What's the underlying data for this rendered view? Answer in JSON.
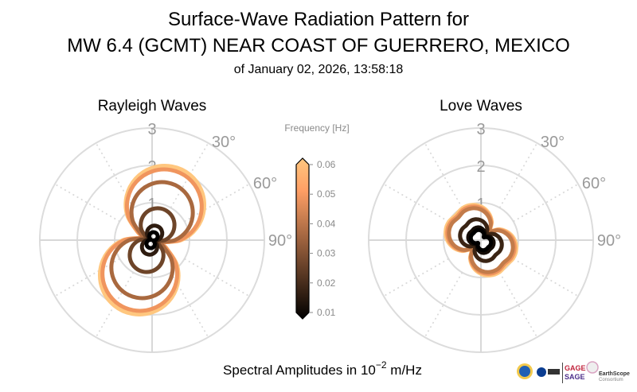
{
  "title": {
    "line1": "Surface-Wave Radiation Pattern for",
    "line2": "MW 6.4 (GCMT) NEAR COAST OF GUERRERO, MEXICO",
    "line3": "of January 02, 2026, 13:58:18"
  },
  "bottom_label": {
    "prefix": "Spectral Amplitudes in 10",
    "exponent": "−2",
    "suffix": " m/Hz"
  },
  "logos": [
    "NSF",
    "NASA",
    "USGS",
    "GAGE",
    "SAGE",
    "EarthScope",
    "Consortium"
  ],
  "chart_data": [
    {
      "type": "polar-line",
      "title": "Rayleigh Waves",
      "radial_ticks": [
        "1",
        "2",
        "3"
      ],
      "angle_tick_labels": [
        "30°",
        "60°",
        "90°"
      ],
      "rlim": [
        0,
        3
      ],
      "grid": true,
      "azimuth_deg": [
        0,
        15,
        30,
        45,
        60,
        75,
        90,
        105,
        120,
        135,
        150,
        165,
        180,
        195,
        210,
        225,
        240,
        255,
        270,
        285,
        300,
        315,
        330,
        345
      ],
      "pattern": [
        0.943,
        0.996,
        0.986,
        0.912,
        0.78,
        0.6,
        0.381,
        0.142,
        0.223,
        0.458,
        0.664,
        0.83,
        0.943,
        0.996,
        0.986,
        0.912,
        0.78,
        0.6,
        0.381,
        0.142,
        0.223,
        0.458,
        0.664,
        0.83
      ],
      "series": [
        {
          "frequency": 0.06,
          "amplitude": 2.05,
          "color": "#ffc77f"
        },
        {
          "frequency": 0.05,
          "amplitude": 1.95,
          "color": "#f0955e"
        },
        {
          "frequency": 0.04,
          "amplitude": 1.6,
          "color": "#a9693f"
        },
        {
          "frequency": 0.03,
          "amplitude": 0.88,
          "color": "#6e4529"
        },
        {
          "frequency": 0.02,
          "amplitude": 0.4,
          "color": "#2e1c10"
        },
        {
          "frequency": 0.01,
          "amplitude": 0.22,
          "color": "#000000"
        }
      ]
    },
    {
      "type": "polar-line",
      "title": "Love Waves",
      "radial_ticks": [
        "1",
        "2",
        "3"
      ],
      "angle_tick_labels": [
        "30°",
        "60°",
        "90°"
      ],
      "rlim": [
        0,
        3
      ],
      "grid": true,
      "azimuth_deg": [
        0,
        15,
        30,
        45,
        60,
        75,
        90,
        105,
        120,
        135,
        150,
        165,
        180,
        195,
        210,
        225,
        240,
        255,
        270,
        285,
        300,
        315,
        330,
        345
      ],
      "pattern": [
        0.859,
        0.729,
        0.552,
        0.35,
        0.552,
        0.729,
        0.859,
        0.93,
        0.941,
        0.9,
        0.941,
        0.93,
        0.859,
        0.729,
        0.552,
        0.35,
        0.552,
        0.729,
        0.859,
        0.93,
        0.941,
        0.9,
        0.941,
        0.93
      ],
      "series": [
        {
          "frequency": 0.06,
          "amplitude": 1.05,
          "color": "#ffc77f"
        },
        {
          "frequency": 0.05,
          "amplitude": 1.0,
          "color": "#f0955e"
        },
        {
          "frequency": 0.04,
          "amplitude": 0.95,
          "color": "#c27b4a"
        },
        {
          "frequency": 0.03,
          "amplitude": 0.62,
          "color": "#3a2414"
        },
        {
          "frequency": 0.02,
          "amplitude": 0.38,
          "color": "#140c06"
        },
        {
          "frequency": 0.01,
          "amplitude": 0.3,
          "color": "#000000"
        }
      ]
    }
  ],
  "colorbar": {
    "label": "Frequency [Hz]",
    "ticks": [
      "0.06",
      "0.05",
      "0.04",
      "0.03",
      "0.02",
      "0.01"
    ],
    "range": [
      0.01,
      0.06
    ],
    "colormap": "copper",
    "color_low": "#000000",
    "color_high": "#ffc77f"
  }
}
